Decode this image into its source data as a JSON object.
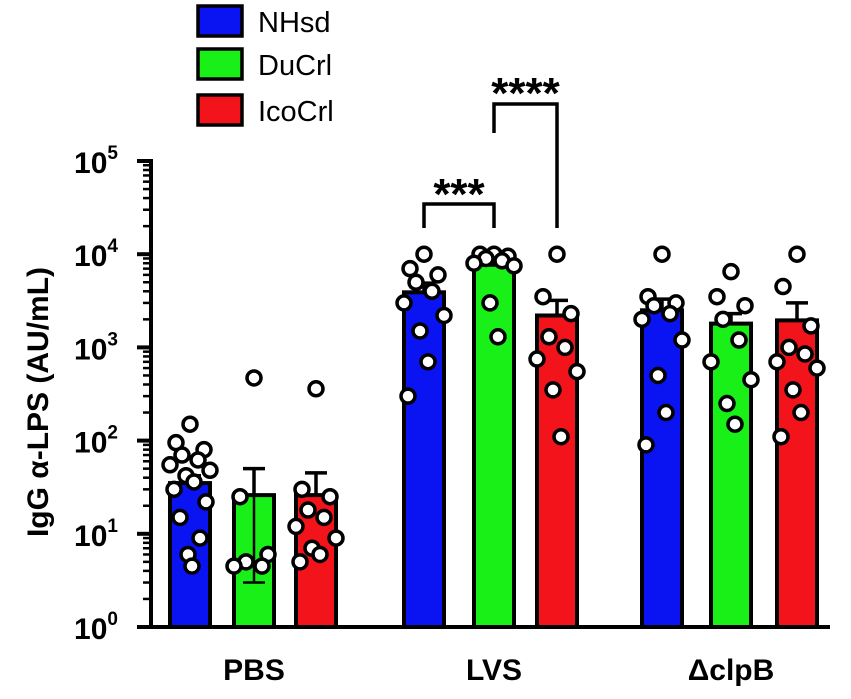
{
  "chart_data": {
    "type": "bar",
    "scale": "log10",
    "ylabel": "IgG α-LPS (AU/mL)",
    "ylim": [
      1,
      100000
    ],
    "y_ticks": [
      {
        "value": 1,
        "base": "10",
        "exp": "0"
      },
      {
        "value": 10,
        "base": "10",
        "exp": "1"
      },
      {
        "value": 100,
        "base": "10",
        "exp": "2"
      },
      {
        "value": 1000,
        "base": "10",
        "exp": "3"
      },
      {
        "value": 10000,
        "base": "10",
        "exp": "4"
      },
      {
        "value": 100000,
        "base": "10",
        "exp": "5"
      }
    ],
    "categories": [
      "PBS",
      "LVS",
      "ΔclpB"
    ],
    "series": [
      {
        "name": "NHsd",
        "color": "#0a14f2",
        "values": [
          35,
          3900,
          2500
        ],
        "error_upper": [
          42,
          4900,
          3300
        ],
        "points": [
          [
            150,
            95,
            80,
            70,
            62,
            55,
            48,
            42,
            36,
            30,
            22,
            15,
            9,
            6,
            4.5
          ],
          [
            10000,
            7000,
            6000,
            5000,
            4000,
            3000,
            2200,
            1500,
            700,
            300
          ],
          [
            10000,
            3500,
            3000,
            2800,
            2300,
            2000,
            1200,
            500,
            200,
            90
          ]
        ]
      },
      {
        "name": "DuCrl",
        "color": "#18f018",
        "values": [
          26,
          7700,
          1800
        ],
        "error_upper": [
          50,
          8900,
          2300
        ],
        "error_lower": [
          3,
          null,
          null
        ],
        "points": [
          [
            470,
            25,
            6,
            5,
            4.5,
            4.5
          ],
          [
            10000,
            10000,
            9500,
            9000,
            8500,
            8000,
            7500,
            3000,
            1300
          ],
          [
            6500,
            3500,
            2800,
            2000,
            1200,
            700,
            450,
            250,
            150
          ]
        ]
      },
      {
        "name": "IcoCrl",
        "color": "#f2141a",
        "values": [
          26,
          2200,
          1950
        ],
        "error_upper": [
          45,
          3200,
          3000
        ],
        "points": [
          [
            360,
            30,
            25,
            18,
            15,
            12,
            9,
            7,
            6,
            5
          ],
          [
            10000,
            3500,
            2300,
            1300,
            1000,
            750,
            550,
            350,
            110
          ],
          [
            10000,
            4500,
            1700,
            1000,
            850,
            700,
            600,
            350,
            200,
            110
          ]
        ]
      }
    ],
    "significance": [
      {
        "label": "***",
        "from_series": 0,
        "to_series": 1,
        "category": 1
      },
      {
        "label": "****",
        "from_series": 1,
        "to_series": 2,
        "category": 1
      }
    ],
    "legend": {
      "position": "top-left"
    }
  }
}
